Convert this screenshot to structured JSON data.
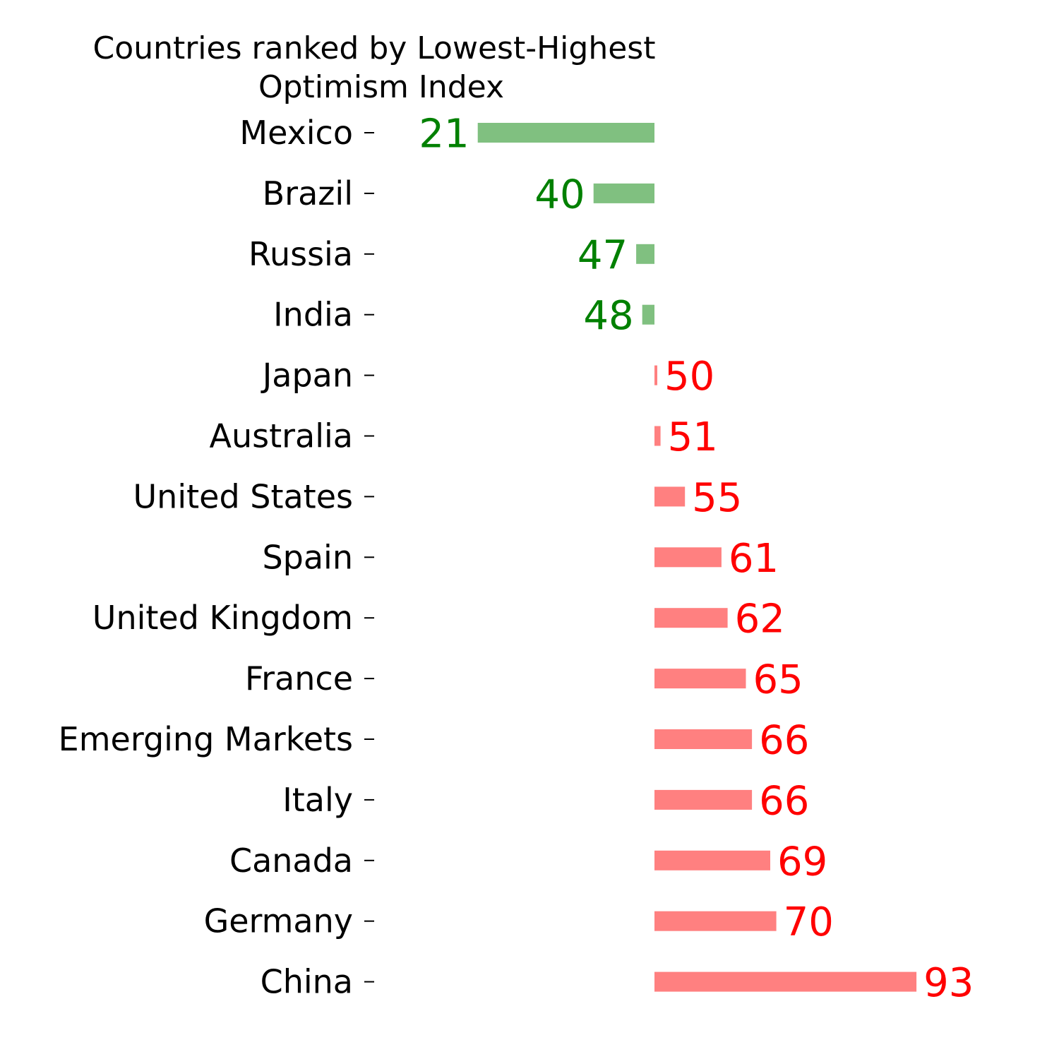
{
  "chart_data": {
    "type": "bar",
    "orientation": "horizontal",
    "title_lines": [
      "Countries ranked by Lowest-Highest",
      "Optimism Index"
    ],
    "xlabel": "",
    "ylabel": "",
    "baseline": 50,
    "xlim": [
      0,
      100
    ],
    "grid": false,
    "categories": [
      "Mexico",
      "Brazil",
      "Russia",
      "India",
      "Japan",
      "Australia",
      "United States",
      "Spain",
      "United Kingdom",
      "France",
      "Emerging Markets",
      "Italy",
      "Canada",
      "Germany",
      "China"
    ],
    "values": [
      21,
      40,
      47,
      48,
      50,
      51,
      55,
      61,
      62,
      65,
      66,
      66,
      69,
      70,
      93
    ],
    "colors": {
      "below_bar": "#80c080",
      "below_text": "#008000",
      "above_bar": "#ff8080",
      "above_text": "#ff0000"
    }
  }
}
